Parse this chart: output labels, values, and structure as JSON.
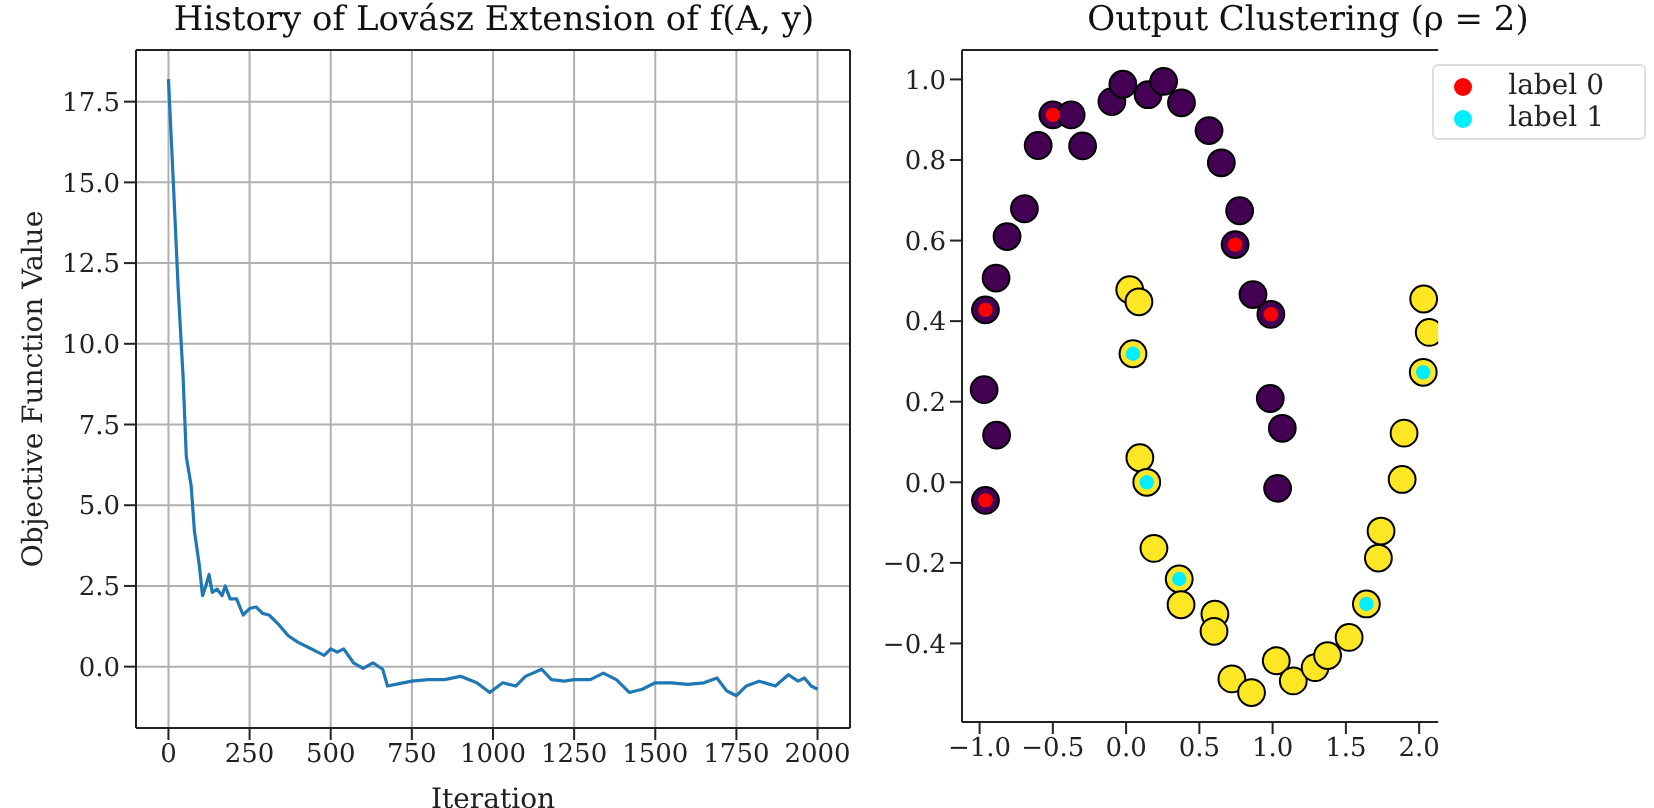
{
  "chart_data": [
    {
      "type": "line",
      "title": "History of Lovász Extension of f(A, y)",
      "xlabel": "Iteration",
      "ylabel": "Objective Function Value",
      "x": [
        0,
        15,
        30,
        45,
        55,
        70,
        80,
        95,
        105,
        115,
        125,
        135,
        150,
        165,
        175,
        190,
        210,
        230,
        250,
        270,
        290,
        310,
        340,
        370,
        400,
        430,
        460,
        480,
        500,
        520,
        540,
        570,
        600,
        630,
        660,
        675,
        700,
        750,
        800,
        850,
        900,
        950,
        990,
        1030,
        1070,
        1100,
        1150,
        1180,
        1220,
        1250,
        1300,
        1340,
        1380,
        1420,
        1460,
        1500,
        1550,
        1600,
        1650,
        1690,
        1720,
        1750,
        1780,
        1820,
        1870,
        1910,
        1940,
        1960,
        1980,
        2000
      ],
      "series": [
        {
          "color": "#1f77b4",
          "values": [
            18.2,
            15.0,
            11.7,
            9.0,
            6.5,
            5.6,
            4.2,
            3.15,
            2.2,
            2.5,
            2.85,
            2.3,
            2.4,
            2.2,
            2.5,
            2.1,
            2.1,
            1.6,
            1.8,
            1.85,
            1.65,
            1.6,
            1.3,
            0.95,
            0.75,
            0.6,
            0.45,
            0.35,
            0.55,
            0.45,
            0.55,
            0.12,
            -0.05,
            0.12,
            -0.08,
            -0.6,
            -0.55,
            -0.45,
            -0.4,
            -0.4,
            -0.3,
            -0.5,
            -0.8,
            -0.5,
            -0.6,
            -0.3,
            -0.08,
            -0.4,
            -0.45,
            -0.4,
            -0.4,
            -0.2,
            -0.4,
            -0.8,
            -0.7,
            -0.5,
            -0.5,
            -0.55,
            -0.5,
            -0.35,
            -0.75,
            -0.9,
            -0.6,
            -0.45,
            -0.6,
            -0.25,
            -0.45,
            -0.35,
            -0.6,
            -0.7
          ]
        }
      ],
      "xlim": [
        -100,
        2100
      ],
      "xticks": [
        0,
        250,
        500,
        750,
        1000,
        1250,
        1500,
        1750,
        2000
      ],
      "ylim": [
        -1.9,
        19.1
      ],
      "yticks": [
        {
          "value": 0,
          "label": "0.0"
        },
        2.5,
        {
          "value": 5,
          "label": "5.0"
        },
        7.5,
        {
          "value": 10,
          "label": "10.0"
        },
        12.5,
        {
          "value": 15,
          "label": "15.0"
        },
        17.5
      ],
      "grid": true,
      "marker": "none",
      "line_style": "solid",
      "legend": false
    },
    {
      "type": "scatter",
      "title": "Output Clustering (ρ = 2)",
      "series": [
        {
          "color": "#440154",
          "x": [
            -0.96,
            -0.5,
            0.744,
            0.988,
            -0.96,
            -0.375,
            -0.6,
            -0.297,
            -0.694,
            -0.8125,
            -0.8875,
            -0.969,
            -0.884,
            -0.097,
            -0.022,
            0.15,
            0.256,
            0.378,
            0.566,
            0.65,
            0.775,
            0.866,
            0.984,
            1.066,
            1.034
          ],
          "values": [
            0.428,
            0.912,
            0.59,
            0.417,
            -0.045,
            0.912,
            0.836,
            0.835,
            0.679,
            0.61,
            0.507,
            0.23,
            0.117,
            0.945,
            0.988,
            0.962,
            0.995,
            0.942,
            0.873,
            0.793,
            0.674,
            0.466,
            0.208,
            0.134,
            -0.015
          ]
        },
        {
          "color": "#fde725",
          "x": [
            0.025,
            0.0875,
            0.047,
            0.094,
            0.141,
            0.19,
            0.3625,
            0.375,
            0.606,
            0.6,
            0.722,
            0.856,
            1.025,
            1.141,
            1.29,
            1.375,
            1.522,
            1.64,
            1.722,
            1.74,
            1.884,
            1.897,
            2.028,
            2.031,
            2.069
          ],
          "values": [
            0.478,
            0.448,
            0.319,
            0.061,
            0.0,
            -0.164,
            -0.24,
            -0.304,
            -0.327,
            -0.37,
            -0.488,
            -0.522,
            -0.443,
            -0.493,
            -0.46,
            -0.43,
            -0.385,
            -0.302,
            -0.188,
            -0.121,
            0.007,
            0.122,
            0.273,
            0.455,
            0.372
          ]
        },
        {
          "name": "label 0",
          "color": "#ff0000",
          "x": [
            -0.96,
            -0.5,
            0.744,
            0.988,
            -0.96
          ],
          "values": [
            0.428,
            0.912,
            0.59,
            0.417,
            -0.045
          ]
        },
        {
          "name": "label 1",
          "color": "#00eeff",
          "x": [
            0.047,
            0.141,
            0.3625,
            1.64,
            2.028
          ],
          "values": [
            0.319,
            0.0,
            -0.24,
            -0.302,
            0.273
          ]
        }
      ],
      "xlim": [
        -1.12,
        2.13
      ],
      "xticks": [
        {
          "value": -1,
          "label": "−1.0"
        },
        {
          "value": -0.5,
          "label": "−0.5"
        },
        {
          "value": 0,
          "label": "0.0"
        },
        0.5,
        {
          "value": 1,
          "label": "1.0"
        },
        1.5,
        {
          "value": 2,
          "label": "2.0"
        }
      ],
      "ylim": [
        -0.595,
        1.073
      ],
      "yticks": [
        {
          "value": -0.4,
          "label": "−0.4"
        },
        {
          "value": -0.2,
          "label": "−0.2"
        },
        {
          "value": 0,
          "label": "0.0"
        },
        0.2,
        0.4,
        0.6,
        0.8,
        {
          "value": 1,
          "label": "1.0"
        }
      ],
      "grid": false,
      "marker": "circle",
      "legend": "top right"
    }
  ]
}
